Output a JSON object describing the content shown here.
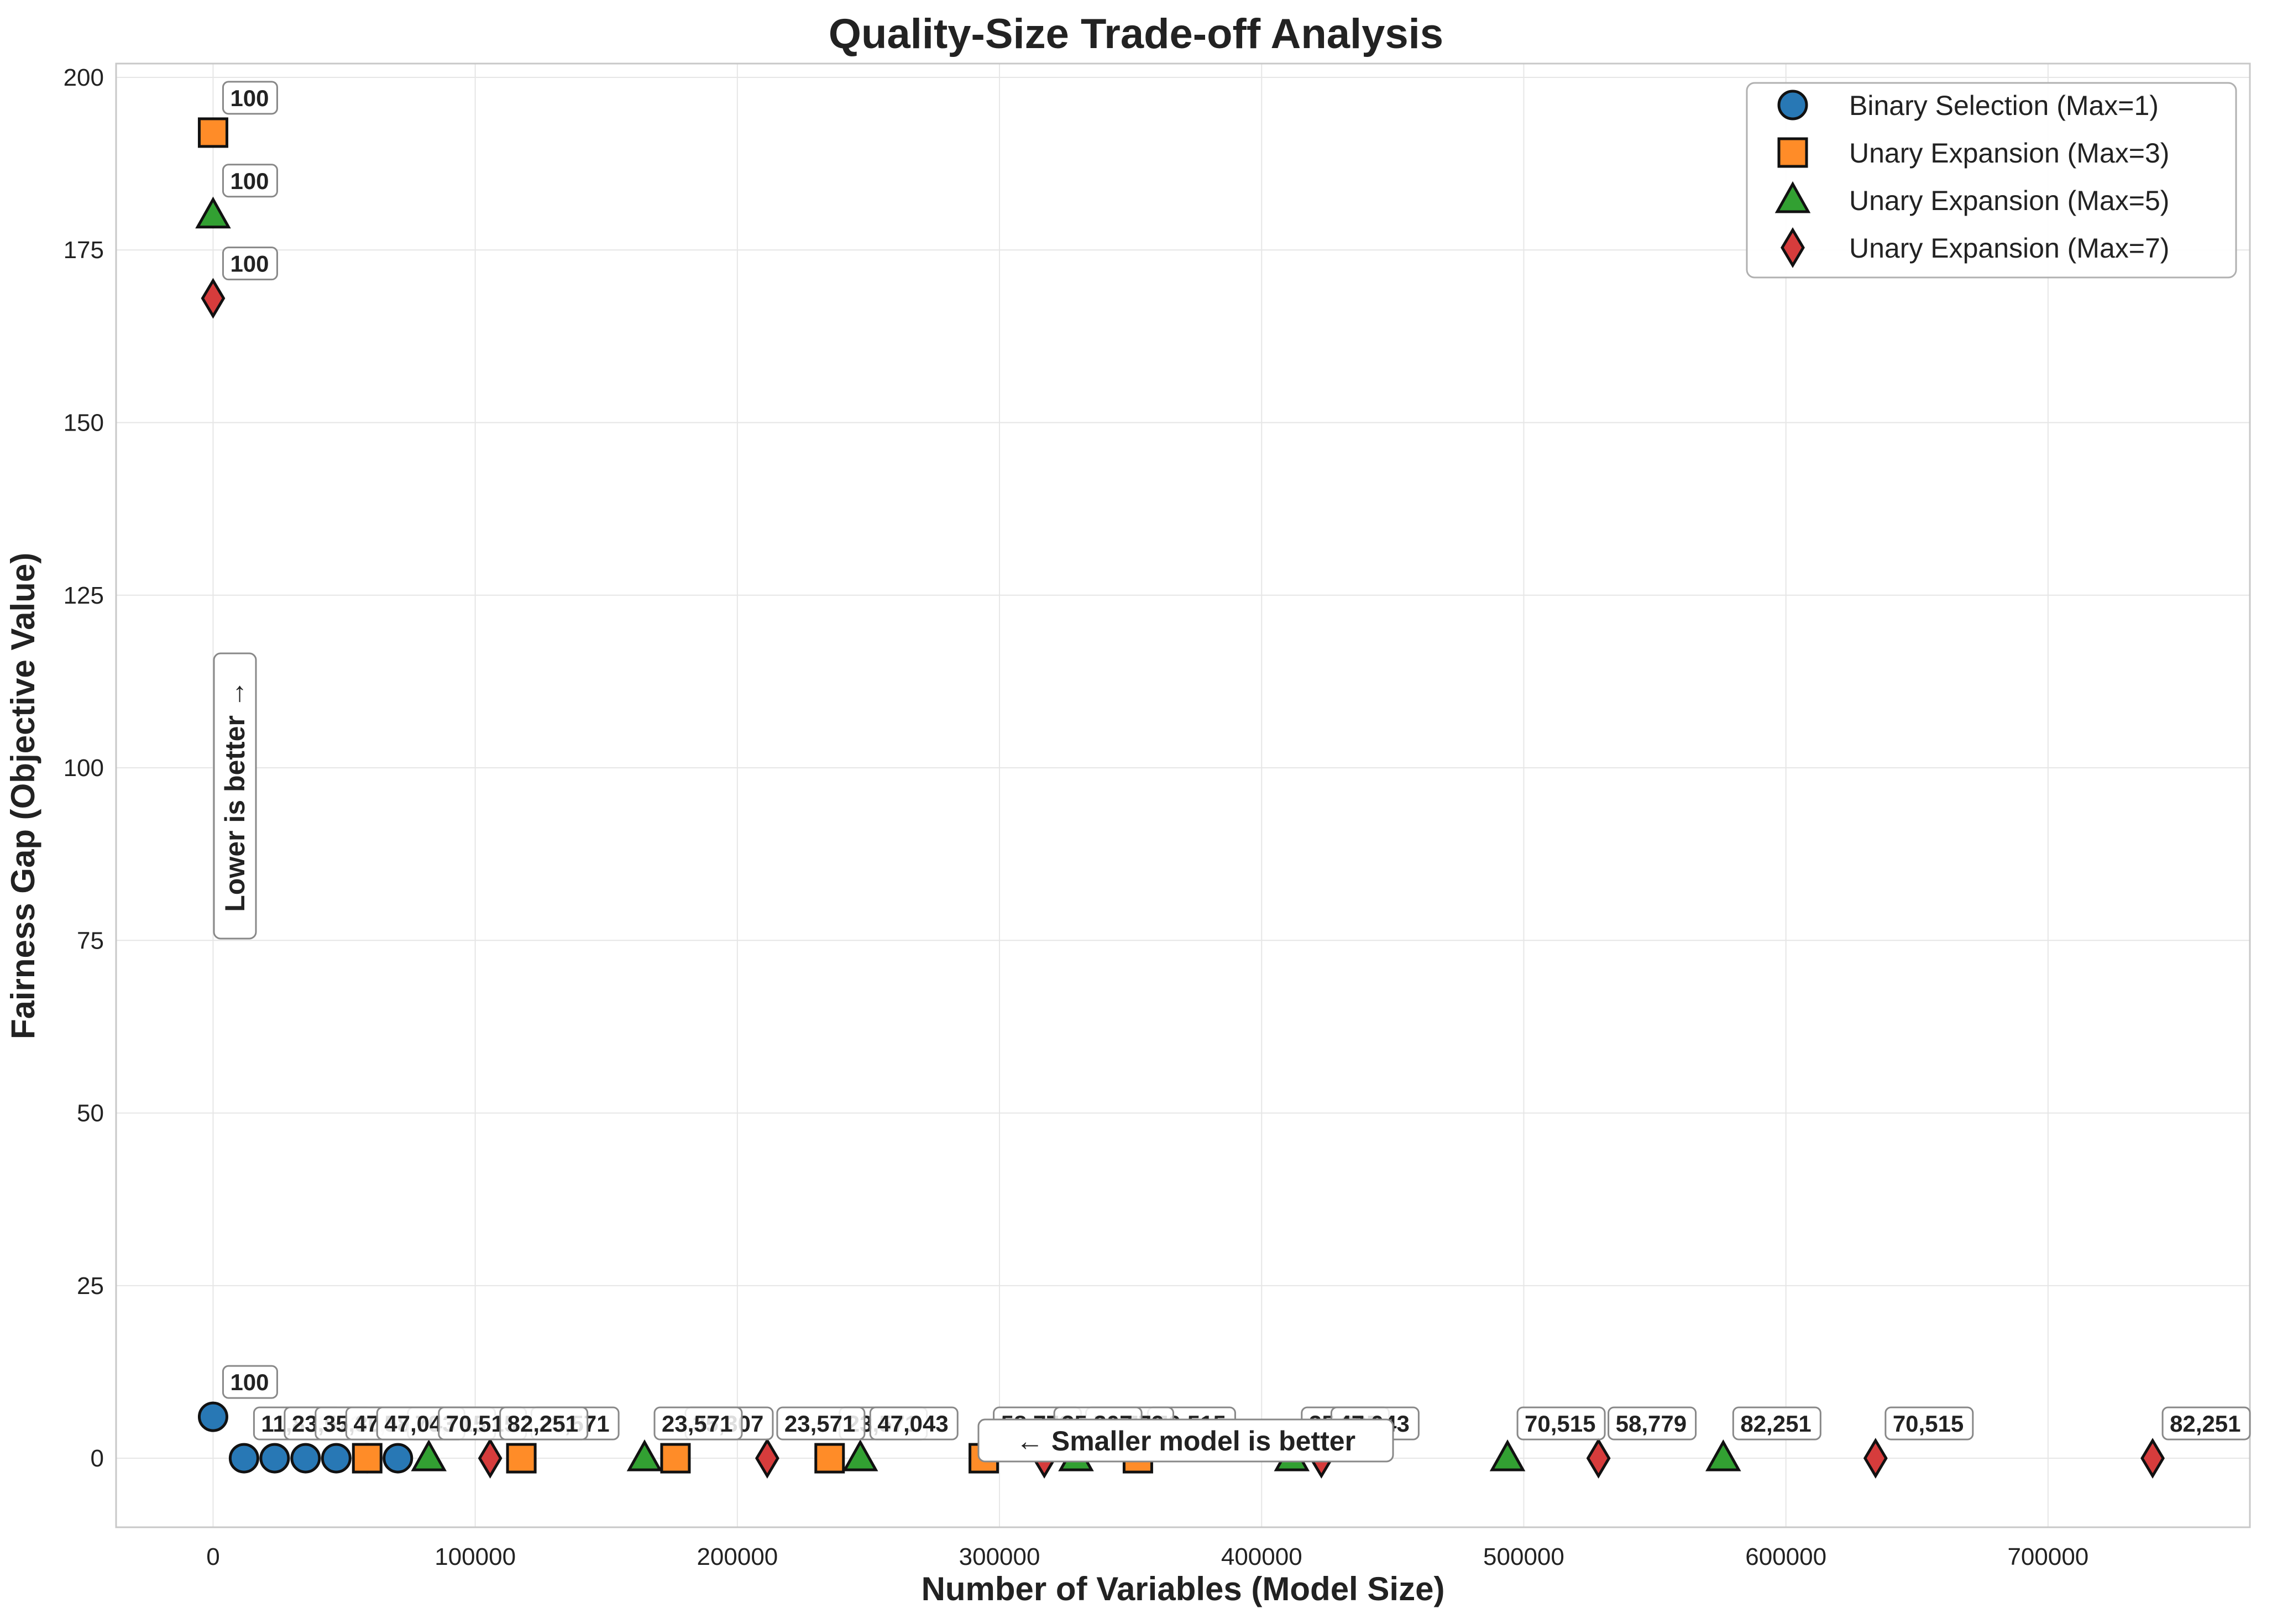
{
  "chart_data": {
    "type": "scatter",
    "title": "Quality-Size Trade-off Analysis",
    "xlabel": "Number of Variables (Model Size)",
    "ylabel": "Fairness Gap (Objective Value)",
    "xlim": [
      -37000,
      777000
    ],
    "ylim": [
      -10,
      202
    ],
    "x_ticks": [
      0,
      100000,
      200000,
      300000,
      400000,
      500000,
      600000,
      700000
    ],
    "x_tick_labels": [
      "0",
      "100000",
      "200000",
      "300000",
      "400000",
      "500000",
      "600000",
      "700000"
    ],
    "y_ticks": [
      0,
      25,
      50,
      75,
      100,
      125,
      150,
      175,
      200
    ],
    "y_tick_labels": [
      "0",
      "25",
      "50",
      "75",
      "100",
      "125",
      "150",
      "175",
      "200"
    ],
    "grid": true,
    "legend_position": "top-right",
    "series": [
      {
        "name": "Binary Selection (Max=1)",
        "marker": "circle",
        "color": "#2878b5",
        "x": [
          0,
          11800,
          23500,
          35300,
          47000,
          58800,
          70500
        ],
        "y": [
          6,
          0,
          0,
          0,
          0,
          0,
          0
        ],
        "labels": [
          "100",
          "11,835",
          "23,571",
          "35,307",
          "47,043",
          "58,779",
          "70,515"
        ]
      },
      {
        "name": "Unary Expansion (Max=3)",
        "marker": "square",
        "color": "#ff8c28",
        "x": [
          0,
          58800,
          117600,
          176400,
          235200,
          294000,
          352800
        ],
        "y": [
          192,
          0,
          0,
          0,
          0,
          0,
          0
        ],
        "labels": [
          "100",
          "47,043",
          "23,571",
          "35,307",
          "23,571",
          "58,779",
          "70,515"
        ]
      },
      {
        "name": "Unary Expansion (Max=5)",
        "marker": "triangle",
        "color": "#32a032",
        "x": [
          0,
          82300,
          164600,
          246900,
          329200,
          411500,
          493800,
          576100
        ],
        "y": [
          180,
          0,
          0,
          0,
          0,
          0,
          0,
          0
        ],
        "labels": [
          "100",
          "70,515",
          "23,571",
          "47,043",
          "58,779",
          "35,307",
          "70,515",
          "82,251"
        ]
      },
      {
        "name": "Unary Expansion (Max=7)",
        "marker": "diamond",
        "color": "#d63c3c",
        "x": [
          0,
          105700,
          211400,
          317100,
          422800,
          528500,
          634200,
          739900
        ],
        "y": [
          168,
          0,
          0,
          0,
          0,
          0,
          0,
          0
        ],
        "labels": [
          "100",
          "82,251",
          "23,571",
          "35,307",
          "47,043",
          "58,779",
          "70,515",
          "82,251"
        ]
      }
    ],
    "annotations": [
      {
        "text": "Lower is better →",
        "orientation": "vertical"
      },
      {
        "text": "← Smaller model is better",
        "orientation": "horizontal"
      }
    ]
  }
}
